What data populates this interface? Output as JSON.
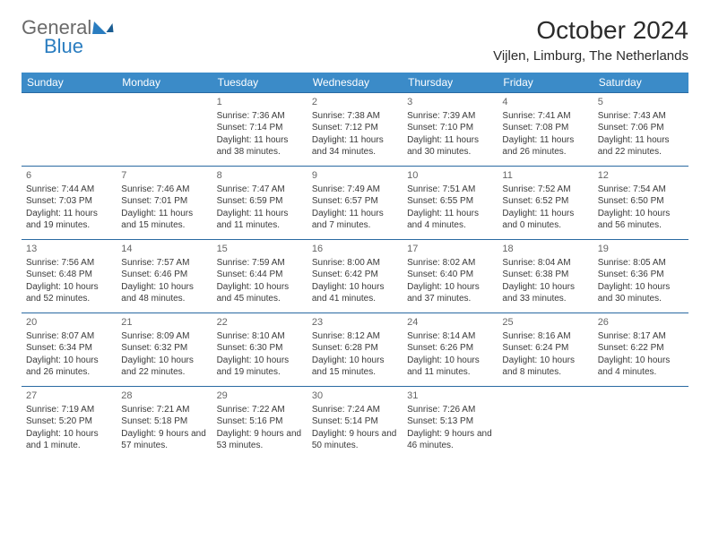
{
  "logo": {
    "part1": "General",
    "part2": "Blue"
  },
  "title": "October 2024",
  "location": "Vijlen, Limburg, The Netherlands",
  "colors": {
    "header_bg": "#3b8bc8",
    "header_text": "#ffffff",
    "row_border": "#2a6aa2",
    "logo_gray": "#6a6a6a",
    "logo_blue": "#2a7dc0",
    "text": "#3a3a3a"
  },
  "weekdays": [
    "Sunday",
    "Monday",
    "Tuesday",
    "Wednesday",
    "Thursday",
    "Friday",
    "Saturday"
  ],
  "weeks": [
    [
      null,
      null,
      {
        "n": "1",
        "sr": "Sunrise: 7:36 AM",
        "ss": "Sunset: 7:14 PM",
        "dl": "Daylight: 11 hours and 38 minutes."
      },
      {
        "n": "2",
        "sr": "Sunrise: 7:38 AM",
        "ss": "Sunset: 7:12 PM",
        "dl": "Daylight: 11 hours and 34 minutes."
      },
      {
        "n": "3",
        "sr": "Sunrise: 7:39 AM",
        "ss": "Sunset: 7:10 PM",
        "dl": "Daylight: 11 hours and 30 minutes."
      },
      {
        "n": "4",
        "sr": "Sunrise: 7:41 AM",
        "ss": "Sunset: 7:08 PM",
        "dl": "Daylight: 11 hours and 26 minutes."
      },
      {
        "n": "5",
        "sr": "Sunrise: 7:43 AM",
        "ss": "Sunset: 7:06 PM",
        "dl": "Daylight: 11 hours and 22 minutes."
      }
    ],
    [
      {
        "n": "6",
        "sr": "Sunrise: 7:44 AM",
        "ss": "Sunset: 7:03 PM",
        "dl": "Daylight: 11 hours and 19 minutes."
      },
      {
        "n": "7",
        "sr": "Sunrise: 7:46 AM",
        "ss": "Sunset: 7:01 PM",
        "dl": "Daylight: 11 hours and 15 minutes."
      },
      {
        "n": "8",
        "sr": "Sunrise: 7:47 AM",
        "ss": "Sunset: 6:59 PM",
        "dl": "Daylight: 11 hours and 11 minutes."
      },
      {
        "n": "9",
        "sr": "Sunrise: 7:49 AM",
        "ss": "Sunset: 6:57 PM",
        "dl": "Daylight: 11 hours and 7 minutes."
      },
      {
        "n": "10",
        "sr": "Sunrise: 7:51 AM",
        "ss": "Sunset: 6:55 PM",
        "dl": "Daylight: 11 hours and 4 minutes."
      },
      {
        "n": "11",
        "sr": "Sunrise: 7:52 AM",
        "ss": "Sunset: 6:52 PM",
        "dl": "Daylight: 11 hours and 0 minutes."
      },
      {
        "n": "12",
        "sr": "Sunrise: 7:54 AM",
        "ss": "Sunset: 6:50 PM",
        "dl": "Daylight: 10 hours and 56 minutes."
      }
    ],
    [
      {
        "n": "13",
        "sr": "Sunrise: 7:56 AM",
        "ss": "Sunset: 6:48 PM",
        "dl": "Daylight: 10 hours and 52 minutes."
      },
      {
        "n": "14",
        "sr": "Sunrise: 7:57 AM",
        "ss": "Sunset: 6:46 PM",
        "dl": "Daylight: 10 hours and 48 minutes."
      },
      {
        "n": "15",
        "sr": "Sunrise: 7:59 AM",
        "ss": "Sunset: 6:44 PM",
        "dl": "Daylight: 10 hours and 45 minutes."
      },
      {
        "n": "16",
        "sr": "Sunrise: 8:00 AM",
        "ss": "Sunset: 6:42 PM",
        "dl": "Daylight: 10 hours and 41 minutes."
      },
      {
        "n": "17",
        "sr": "Sunrise: 8:02 AM",
        "ss": "Sunset: 6:40 PM",
        "dl": "Daylight: 10 hours and 37 minutes."
      },
      {
        "n": "18",
        "sr": "Sunrise: 8:04 AM",
        "ss": "Sunset: 6:38 PM",
        "dl": "Daylight: 10 hours and 33 minutes."
      },
      {
        "n": "19",
        "sr": "Sunrise: 8:05 AM",
        "ss": "Sunset: 6:36 PM",
        "dl": "Daylight: 10 hours and 30 minutes."
      }
    ],
    [
      {
        "n": "20",
        "sr": "Sunrise: 8:07 AM",
        "ss": "Sunset: 6:34 PM",
        "dl": "Daylight: 10 hours and 26 minutes."
      },
      {
        "n": "21",
        "sr": "Sunrise: 8:09 AM",
        "ss": "Sunset: 6:32 PM",
        "dl": "Daylight: 10 hours and 22 minutes."
      },
      {
        "n": "22",
        "sr": "Sunrise: 8:10 AM",
        "ss": "Sunset: 6:30 PM",
        "dl": "Daylight: 10 hours and 19 minutes."
      },
      {
        "n": "23",
        "sr": "Sunrise: 8:12 AM",
        "ss": "Sunset: 6:28 PM",
        "dl": "Daylight: 10 hours and 15 minutes."
      },
      {
        "n": "24",
        "sr": "Sunrise: 8:14 AM",
        "ss": "Sunset: 6:26 PM",
        "dl": "Daylight: 10 hours and 11 minutes."
      },
      {
        "n": "25",
        "sr": "Sunrise: 8:16 AM",
        "ss": "Sunset: 6:24 PM",
        "dl": "Daylight: 10 hours and 8 minutes."
      },
      {
        "n": "26",
        "sr": "Sunrise: 8:17 AM",
        "ss": "Sunset: 6:22 PM",
        "dl": "Daylight: 10 hours and 4 minutes."
      }
    ],
    [
      {
        "n": "27",
        "sr": "Sunrise: 7:19 AM",
        "ss": "Sunset: 5:20 PM",
        "dl": "Daylight: 10 hours and 1 minute."
      },
      {
        "n": "28",
        "sr": "Sunrise: 7:21 AM",
        "ss": "Sunset: 5:18 PM",
        "dl": "Daylight: 9 hours and 57 minutes."
      },
      {
        "n": "29",
        "sr": "Sunrise: 7:22 AM",
        "ss": "Sunset: 5:16 PM",
        "dl": "Daylight: 9 hours and 53 minutes."
      },
      {
        "n": "30",
        "sr": "Sunrise: 7:24 AM",
        "ss": "Sunset: 5:14 PM",
        "dl": "Daylight: 9 hours and 50 minutes."
      },
      {
        "n": "31",
        "sr": "Sunrise: 7:26 AM",
        "ss": "Sunset: 5:13 PM",
        "dl": "Daylight: 9 hours and 46 minutes."
      },
      null,
      null
    ]
  ]
}
